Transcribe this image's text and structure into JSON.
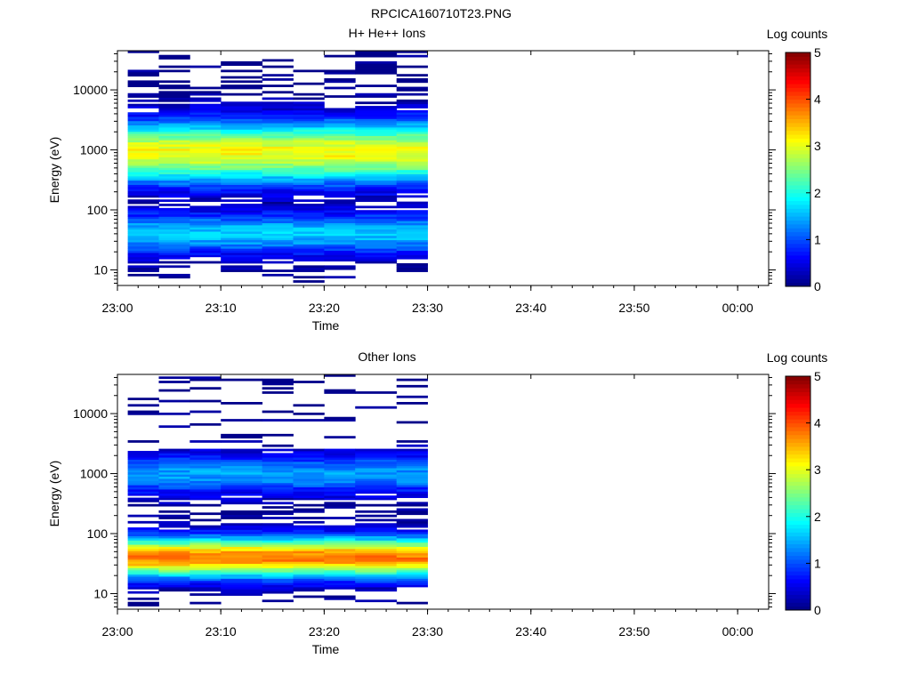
{
  "page_title": "RPCICA160710T23.PNG",
  "colors": {
    "axis": "#000000",
    "background": "#ffffff",
    "colormap": [
      "#000080",
      "#0000ff",
      "#0080ff",
      "#00ffff",
      "#80ff80",
      "#ffff00",
      "#ff8000",
      "#ff0000",
      "#800000"
    ]
  },
  "chart_data": [
    {
      "type": "heatmap",
      "title": "H+ He++ Ions",
      "xlabel": "Time",
      "ylabel": "Energy (eV)",
      "yscale": "log",
      "ylim": [
        5.5,
        45000
      ],
      "xlim": [
        "23:00",
        "00:03"
      ],
      "x_ticks": [
        "23:00",
        "23:10",
        "23:20",
        "23:30",
        "23:40",
        "23:50",
        "00:00"
      ],
      "y_ticks": [
        "10",
        "100",
        "1000",
        "10000"
      ],
      "colorbar": {
        "label": "Log counts",
        "range": [
          0,
          5
        ],
        "ticks": [
          "0",
          "1",
          "2",
          "3",
          "4",
          "5"
        ]
      },
      "data_window": [
        "23:01",
        "23:30"
      ],
      "time_columns": 9,
      "column_times": [
        "23:01",
        "23:04",
        "23:07",
        "23:10",
        "23:14",
        "23:17",
        "23:20",
        "23:23",
        "23:27"
      ],
      "features": [
        {
          "energy_range": [
            600,
            1400
          ],
          "level": 3.1,
          "description": "main band"
        },
        {
          "energy_range": [
            35,
            48
          ],
          "level": 1.6,
          "description": "secondary band"
        }
      ]
    },
    {
      "type": "heatmap",
      "title": "Other Ions",
      "xlabel": "Time",
      "ylabel": "Energy (eV)",
      "yscale": "log",
      "ylim": [
        5.5,
        45000
      ],
      "xlim": [
        "23:00",
        "00:03"
      ],
      "x_ticks": [
        "23:00",
        "23:10",
        "23:20",
        "23:30",
        "23:40",
        "23:50",
        "00:00"
      ],
      "y_ticks": [
        "10",
        "100",
        "1000",
        "10000"
      ],
      "colorbar": {
        "label": "Log counts",
        "range": [
          0,
          5
        ],
        "ticks": [
          "0",
          "1",
          "2",
          "3",
          "4",
          "5"
        ]
      },
      "data_window": [
        "23:01",
        "23:30"
      ],
      "time_columns": 9,
      "column_times": [
        "23:01",
        "23:04",
        "23:07",
        "23:10",
        "23:14",
        "23:17",
        "23:20",
        "23:23",
        "23:27"
      ],
      "features": [
        {
          "energy_range": [
            30,
            55
          ],
          "level": 3.8,
          "description": "main band"
        },
        {
          "energy_range": [
            700,
            1400
          ],
          "level": 1.4,
          "description": "secondary band"
        }
      ]
    }
  ]
}
